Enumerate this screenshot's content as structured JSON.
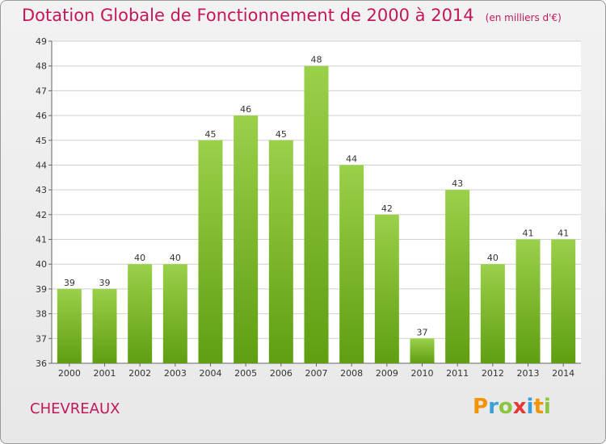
{
  "colors": {
    "title": "#c2185b",
    "bar_top": "#9bd04a",
    "bar_bottom": "#5f9e12",
    "grid": "#d0d0d0",
    "axis_text": "#333333"
  },
  "chart_data": {
    "type": "bar",
    "title": "Dotation Globale de Fonctionnement de 2000 à 2014",
    "subtitle": "(en milliers d'€)",
    "xlabel": "",
    "ylabel": "",
    "categories": [
      "2000",
      "2001",
      "2002",
      "2003",
      "2004",
      "2005",
      "2006",
      "2007",
      "2008",
      "2009",
      "2010",
      "2011",
      "2012",
      "2013",
      "2014"
    ],
    "values": [
      39,
      39,
      40,
      40,
      45,
      46,
      45,
      48,
      44,
      42,
      37,
      43,
      40,
      41,
      41
    ],
    "ylim": [
      36,
      49
    ],
    "yticks": [
      36,
      37,
      38,
      39,
      40,
      41,
      42,
      43,
      44,
      45,
      46,
      47,
      48,
      49
    ],
    "grid": true
  },
  "footer": {
    "town": "CHEVREAUX",
    "logo": "Proxiti"
  }
}
